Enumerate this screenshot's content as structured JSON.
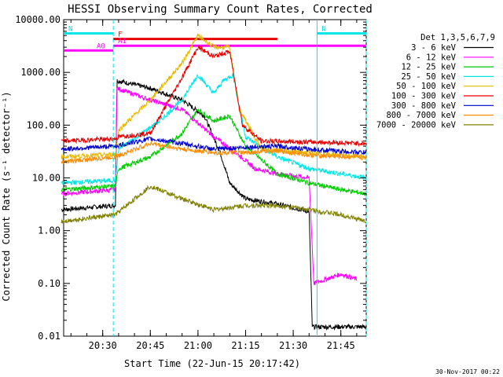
{
  "chart_data": {
    "type": "line",
    "title": "HESSI Observing Summary Count Rates, Corrected",
    "xlabel": "Start Time (22-Jun-15 20:17:42)",
    "ylabel": "Corrected Count Rate (s⁻¹ detector⁻¹)",
    "y_scale": "log",
    "ylim": [
      0.01,
      10000
    ],
    "xlim": [
      "20:17:42",
      "21:53:00"
    ],
    "x_ticks": [
      "20:30",
      "20:45",
      "21:00",
      "21:15",
      "21:30",
      "21:45"
    ],
    "y_ticks": [
      "10000.00",
      "1000.00",
      "100.00",
      "10.00",
      "1.00",
      "0.10",
      "0.01"
    ],
    "footer_date": "30-Nov-2017 00:22",
    "legend_title": "Det 1,3,5,6,7,9",
    "series": [
      {
        "name": "3 - 6 keV",
        "color": "#000000",
        "points": [
          [
            "20:17",
            2.5
          ],
          [
            "20:34",
            3.0
          ],
          [
            "20:34.5",
            700
          ],
          [
            "20:45",
            500
          ],
          [
            "20:55",
            300
          ],
          [
            "21:02",
            150
          ],
          [
            "21:07",
            30
          ],
          [
            "21:10",
            8
          ],
          [
            "21:15",
            4
          ],
          [
            "21:25",
            3.2
          ],
          [
            "21:35",
            2.3
          ],
          [
            "21:36",
            0.015
          ],
          [
            "21:53",
            0.015
          ]
        ]
      },
      {
        "name": "6 - 12 keV",
        "color": "#ff00ff",
        "points": [
          [
            "20:17",
            5
          ],
          [
            "20:34",
            6
          ],
          [
            "20:34.5",
            500
          ],
          [
            "20:45",
            300
          ],
          [
            "20:55",
            200
          ],
          [
            "21:05",
            60
          ],
          [
            "21:12",
            30
          ],
          [
            "21:18",
            15
          ],
          [
            "21:25",
            12
          ],
          [
            "21:35",
            10
          ],
          [
            "21:36.5",
            0.1
          ],
          [
            "21:45",
            0.15
          ],
          [
            "21:50",
            0.12
          ]
        ]
      },
      {
        "name": "12 - 25 keV",
        "color": "#00cc00",
        "points": [
          [
            "20:17",
            6
          ],
          [
            "20:34",
            7
          ],
          [
            "20:35",
            15
          ],
          [
            "20:45",
            25
          ],
          [
            "20:55",
            70
          ],
          [
            "21:00",
            200
          ],
          [
            "21:05",
            120
          ],
          [
            "21:10",
            150
          ],
          [
            "21:15",
            40
          ],
          [
            "21:25",
            12
          ],
          [
            "21:35",
            8
          ],
          [
            "21:45",
            6
          ],
          [
            "21:53",
            5
          ]
        ]
      },
      {
        "name": "25 - 50 keV",
        "color": "#00e5e5",
        "points": [
          [
            "20:17",
            8
          ],
          [
            "20:34",
            9
          ],
          [
            "20:35",
            35
          ],
          [
            "20:48",
            120
          ],
          [
            "20:55",
            300
          ],
          [
            "21:00",
            900
          ],
          [
            "21:05",
            400
          ],
          [
            "21:08",
            700
          ],
          [
            "21:11",
            900
          ],
          [
            "21:15",
            60
          ],
          [
            "21:25",
            25
          ],
          [
            "21:35",
            15
          ],
          [
            "21:45",
            12
          ],
          [
            "21:53",
            10
          ]
        ]
      },
      {
        "name": "50 - 100 keV",
        "color": "#e6b800",
        "points": [
          [
            "20:17",
            25
          ],
          [
            "20:34",
            28
          ],
          [
            "20:35",
            80
          ],
          [
            "20:45",
            300
          ],
          [
            "20:55",
            1500
          ],
          [
            "21:00",
            5000
          ],
          [
            "21:05",
            3000
          ],
          [
            "21:10",
            3000
          ],
          [
            "21:13",
            200
          ],
          [
            "21:20",
            35
          ],
          [
            "21:35",
            30
          ],
          [
            "21:53",
            25
          ]
        ]
      },
      {
        "name": "100 - 300 keV",
        "color": "#e60000",
        "points": [
          [
            "20:17",
            50
          ],
          [
            "20:34",
            55
          ],
          [
            "20:35",
            60
          ],
          [
            "20:45",
            70
          ],
          [
            "20:55",
            800
          ],
          [
            "21:00",
            3000
          ],
          [
            "21:05",
            2000
          ],
          [
            "21:10",
            2500
          ],
          [
            "21:14",
            100
          ],
          [
            "21:20",
            50
          ],
          [
            "21:35",
            48
          ],
          [
            "21:53",
            45
          ]
        ]
      },
      {
        "name": "300 - 800 keV",
        "color": "#0000cc",
        "points": [
          [
            "20:17",
            35
          ],
          [
            "20:34",
            40
          ],
          [
            "20:45",
            55
          ],
          [
            "20:55",
            45
          ],
          [
            "21:05",
            35
          ],
          [
            "21:15",
            38
          ],
          [
            "21:25",
            40
          ],
          [
            "21:35",
            35
          ],
          [
            "21:53",
            30
          ]
        ]
      },
      {
        "name": "800 - 7000 keV",
        "color": "#ff8c00",
        "points": [
          [
            "20:17",
            20
          ],
          [
            "20:34",
            25
          ],
          [
            "20:45",
            45
          ],
          [
            "20:55",
            35
          ],
          [
            "21:05",
            30
          ],
          [
            "21:15",
            30
          ],
          [
            "21:25",
            33
          ],
          [
            "21:35",
            27
          ],
          [
            "21:53",
            24
          ]
        ]
      },
      {
        "name": "7000 - 20000 keV",
        "color": "#808000",
        "points": [
          [
            "20:17",
            1.5
          ],
          [
            "20:34",
            2
          ],
          [
            "20:45",
            7
          ],
          [
            "20:55",
            4
          ],
          [
            "21:05",
            2.5
          ],
          [
            "21:15",
            3
          ],
          [
            "21:25",
            3
          ],
          [
            "21:35",
            2.5
          ],
          [
            "21:45",
            2
          ],
          [
            "21:53",
            1.5
          ]
        ]
      }
    ],
    "annotations": [
      {
        "label": "N",
        "color": "#00e5e5",
        "start": "20:17:42",
        "end": "20:33:20",
        "level": 5500
      },
      {
        "label": "N",
        "color": "#00e5e5",
        "start": "21:37:30",
        "end": "21:53:00",
        "level": 5500
      },
      {
        "label": "F",
        "color": "#e60000",
        "start": "20:33:20",
        "end": "21:25:00",
        "level": 4300
      },
      {
        "label": "A0",
        "color": "#ff00ff",
        "start": "20:17:42",
        "end": "20:33:20",
        "level": 2600
      },
      {
        "label": "A1",
        "color": "#ff00ff",
        "start": "20:33:20",
        "end": "21:53:00",
        "level": 3200
      }
    ],
    "vertical_lines": [
      {
        "time": "20:33:20",
        "color": "#00e5e5",
        "style": "dashed"
      },
      {
        "time": "21:37:30",
        "color": "#00e5e5",
        "style": "solid"
      },
      {
        "time": "21:53:00",
        "color": "#00e5e5",
        "style": "dashed"
      }
    ]
  }
}
